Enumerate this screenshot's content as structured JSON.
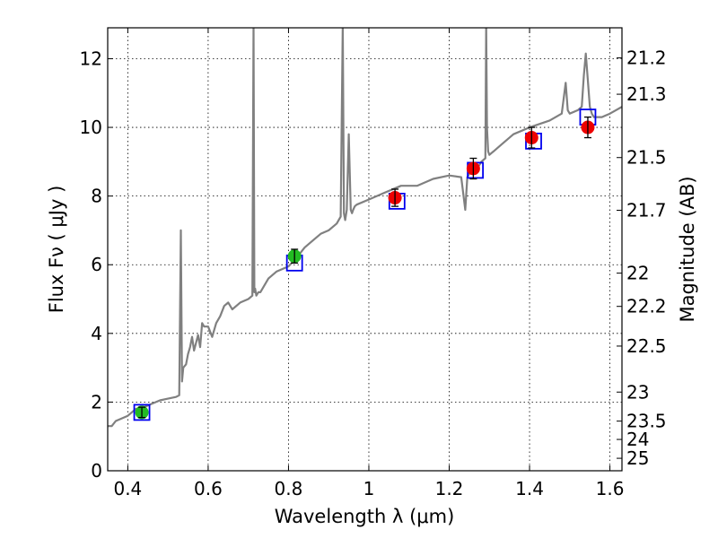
{
  "chart_data": {
    "type": "scatter",
    "xlabel": "Wavelength  λ (μm)",
    "ylabel": "Flux  Fν  ( μJy )",
    "y2label": "Magnitude (AB)",
    "xlim": [
      0.35,
      1.63
    ],
    "ylim": [
      0,
      12.9
    ],
    "grid": true,
    "x_ticks": [
      0.4,
      0.6,
      0.8,
      1.0,
      1.2,
      1.4,
      1.6
    ],
    "x_tick_labels": [
      "0.4",
      "0.6",
      "0.8",
      "1",
      "1.2",
      "1.4",
      "1.6"
    ],
    "y_ticks": [
      0,
      2,
      4,
      6,
      8,
      10,
      12
    ],
    "y_tick_labels": [
      "0",
      "2",
      "4",
      "6",
      "8",
      "10",
      "12"
    ],
    "mag_ticks": [
      21.2,
      21.3,
      21.5,
      21.7,
      22,
      22.2,
      22.5,
      23,
      23.5,
      24,
      25
    ],
    "mag_tick_labels": [
      "21.2",
      "21.3",
      "21.5",
      "21.7",
      "22",
      "22.2",
      "22.5",
      "23",
      "23.5",
      "24",
      "25"
    ],
    "spectrum": {
      "name": "model spectrum",
      "color": "#808080",
      "x": [
        0.35,
        0.36,
        0.37,
        0.38,
        0.4,
        0.42,
        0.44,
        0.46,
        0.48,
        0.5,
        0.52,
        0.528,
        0.532,
        0.535,
        0.538,
        0.545,
        0.55,
        0.555,
        0.56,
        0.565,
        0.575,
        0.58,
        0.585,
        0.59,
        0.6,
        0.61,
        0.62,
        0.63,
        0.64,
        0.65,
        0.66,
        0.68,
        0.7,
        0.71,
        0.713,
        0.715,
        0.717,
        0.72,
        0.725,
        0.73,
        0.75,
        0.77,
        0.8,
        0.82,
        0.84,
        0.86,
        0.88,
        0.9,
        0.92,
        0.93,
        0.935,
        0.938,
        0.941,
        0.945,
        0.95,
        0.955,
        0.958,
        0.961,
        0.965,
        0.97,
        1.0,
        1.04,
        1.08,
        1.12,
        1.16,
        1.2,
        1.23,
        1.24,
        1.245,
        1.25,
        1.27,
        1.28,
        1.29,
        1.292,
        1.294,
        1.297,
        1.3,
        1.305,
        1.31,
        1.33,
        1.36,
        1.4,
        1.45,
        1.48,
        1.49,
        1.495,
        1.5,
        1.52,
        1.53,
        1.535,
        1.54,
        1.545,
        1.55,
        1.555,
        1.56,
        1.58,
        1.6,
        1.63
      ],
      "y": [
        1.3,
        1.3,
        1.45,
        1.5,
        1.6,
        1.8,
        1.85,
        1.95,
        2.05,
        2.1,
        2.15,
        2.2,
        7.0,
        2.6,
        3.0,
        3.1,
        3.4,
        3.6,
        3.9,
        3.5,
        3.95,
        3.6,
        4.3,
        4.2,
        4.2,
        3.9,
        4.3,
        4.5,
        4.8,
        4.9,
        4.7,
        4.9,
        5.0,
        5.1,
        13.0,
        5.2,
        5.3,
        5.1,
        5.2,
        5.2,
        5.6,
        5.8,
        5.95,
        6.2,
        6.5,
        6.7,
        6.9,
        7.0,
        7.2,
        7.4,
        13.0,
        7.5,
        7.3,
        7.6,
        9.8,
        7.6,
        7.5,
        7.6,
        7.7,
        7.75,
        7.9,
        8.1,
        8.3,
        8.3,
        8.5,
        8.6,
        8.55,
        7.6,
        8.55,
        8.65,
        8.8,
        9.0,
        9.1,
        13.0,
        10.0,
        9.3,
        9.2,
        9.25,
        9.3,
        9.5,
        9.8,
        10.0,
        10.2,
        10.4,
        11.3,
        10.5,
        10.4,
        10.5,
        10.6,
        11.5,
        12.15,
        11.4,
        10.6,
        10.4,
        10.3,
        10.3,
        10.4,
        10.6
      ]
    },
    "model_boxes": {
      "name": "model photometry",
      "color": "#0000ee",
      "x": [
        0.435,
        0.815,
        1.07,
        1.265,
        1.41,
        1.545
      ],
      "y": [
        1.7,
        6.05,
        7.85,
        8.75,
        9.6,
        10.3
      ]
    },
    "photometry": {
      "name": "observed photometry",
      "x": [
        0.435,
        0.815,
        1.065,
        1.26,
        1.405,
        1.545
      ],
      "y": [
        1.7,
        6.25,
        7.95,
        8.8,
        9.7,
        10.0
      ],
      "yerr": [
        0.15,
        0.2,
        0.25,
        0.3,
        0.3,
        0.3
      ],
      "colors": [
        "#22bb22",
        "#22bb22",
        "#ee0000",
        "#ee0000",
        "#ee0000",
        "#ee0000"
      ]
    }
  }
}
